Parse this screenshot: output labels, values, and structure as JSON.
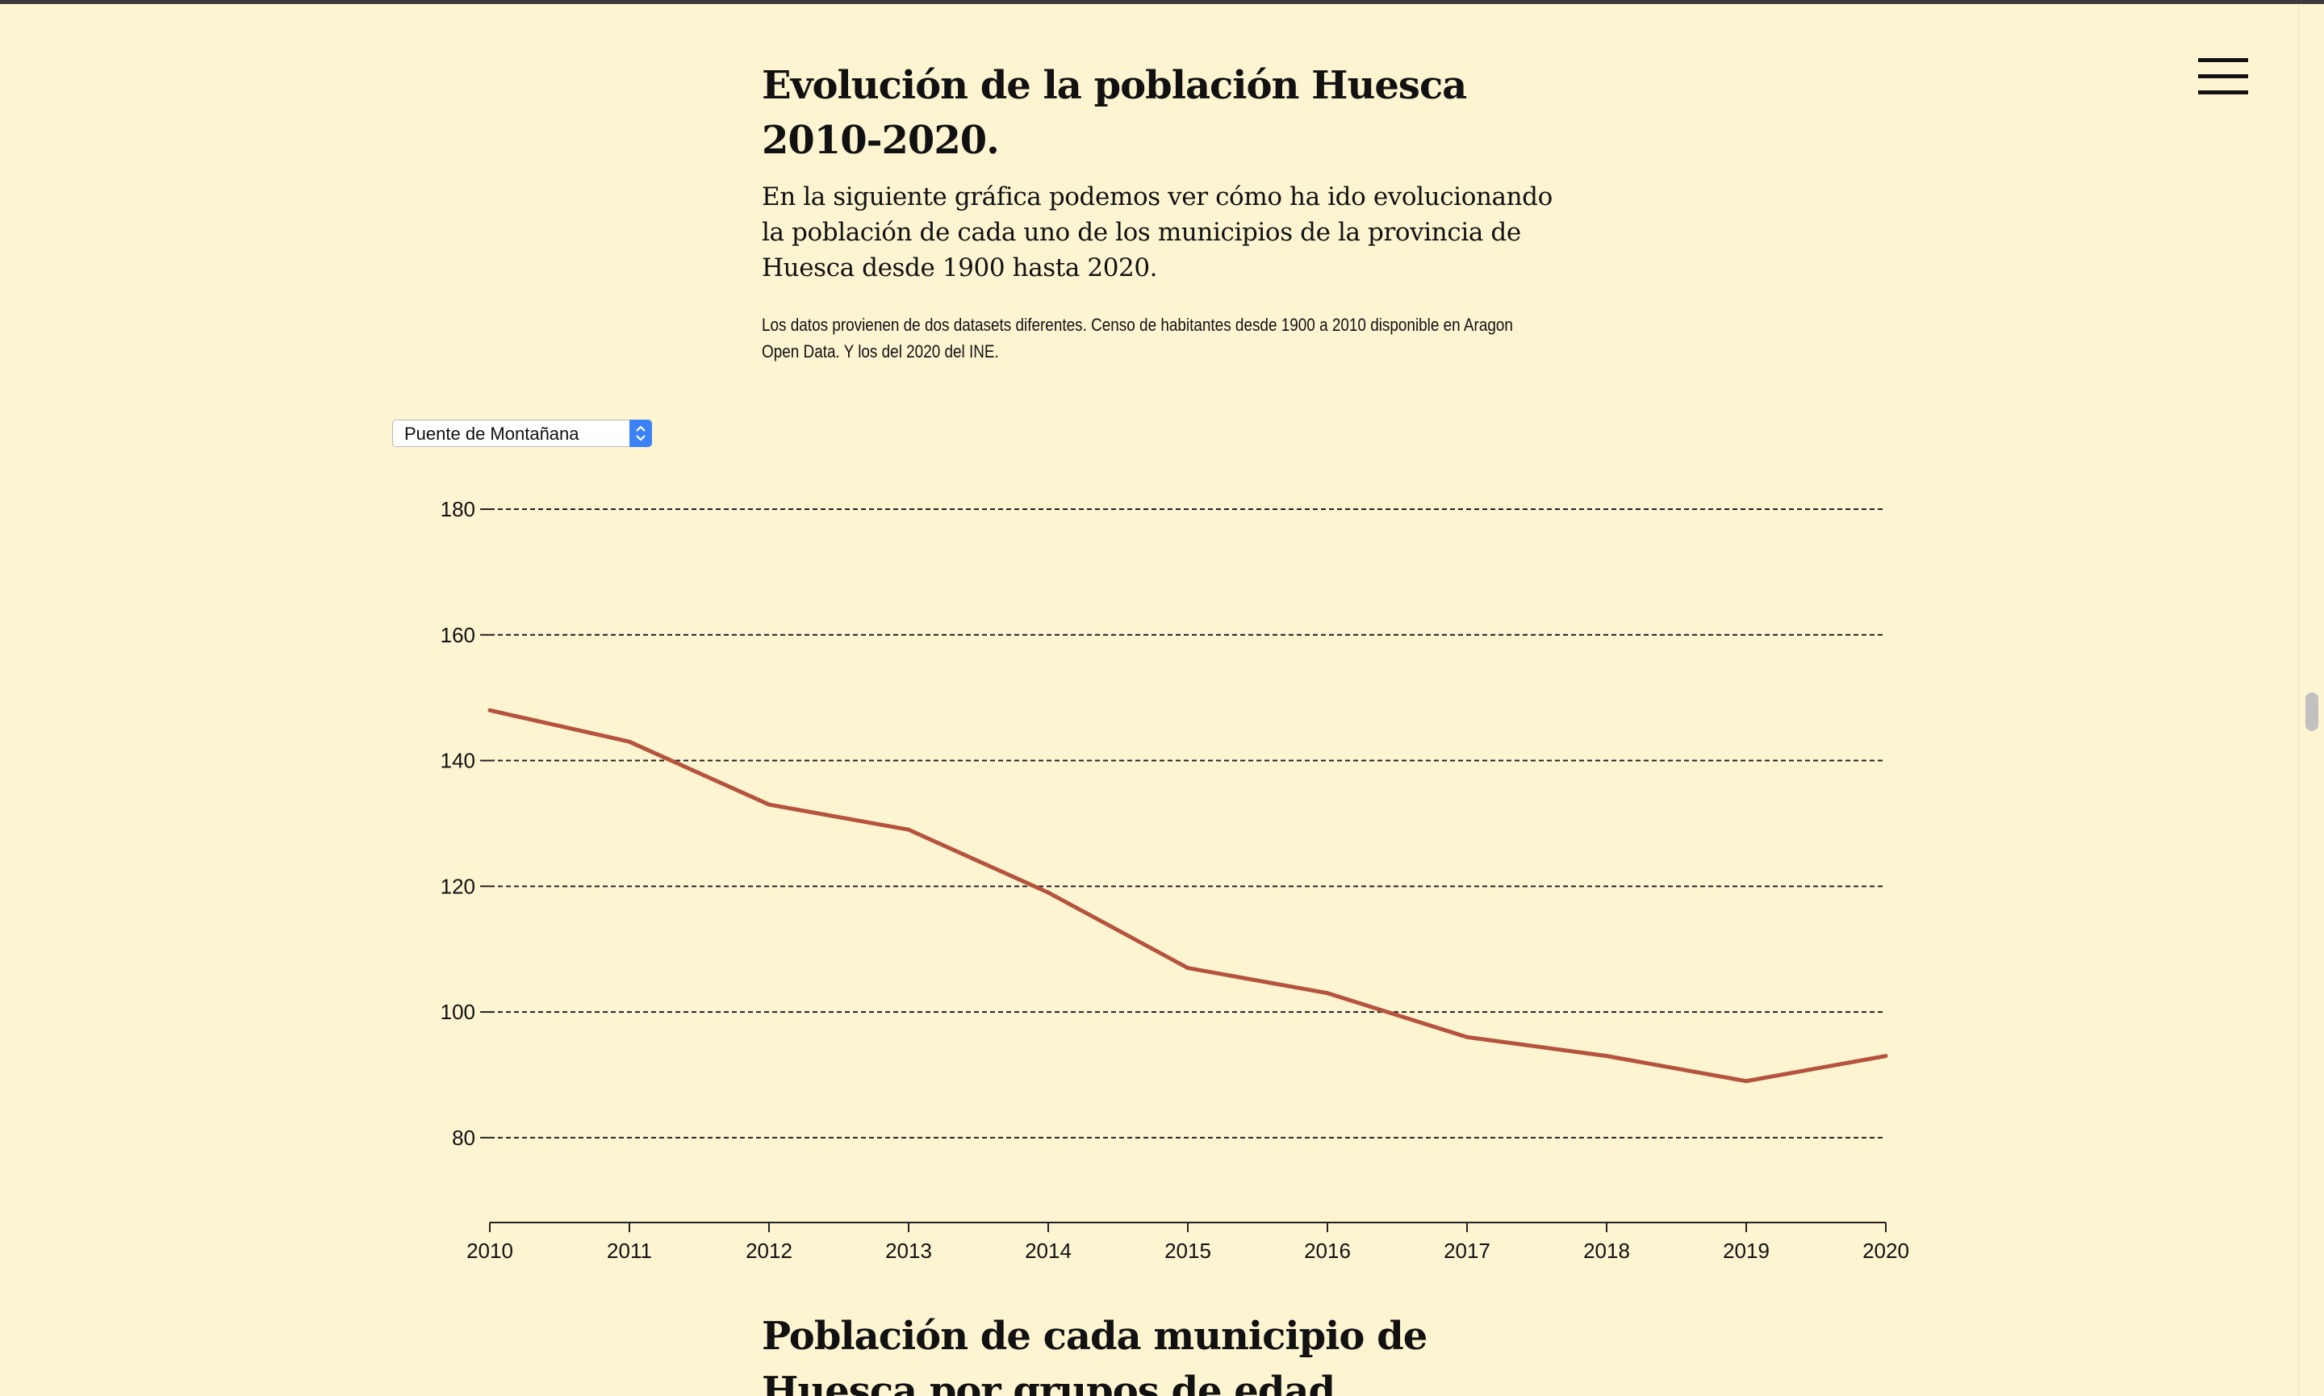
{
  "header": {
    "title": "Evolución de la población Huesca 2010-2020.",
    "intro": "En la siguiente gráfica podemos ver cómo ha ido evolucionando la población de cada uno de los municipios de la provincia de Huesca desde 1900 hasta 2020.",
    "note": "Los datos provienen de dos datasets diferentes. Censo de habitantes desde 1900 a 2010 disponible en Aragon Open Data. Y los del 2020 del INE."
  },
  "controls": {
    "municipality_select": "Puente de Montañana"
  },
  "icons": {
    "menu": "hamburger-menu-icon",
    "select_arrows": "chevron-up-down-icon"
  },
  "colors": {
    "background": "#fdf5d2",
    "line": "#b5533c",
    "select_accent": "#3b82f6"
  },
  "chart_data": {
    "type": "line",
    "title": "",
    "xlabel": "",
    "ylabel": "",
    "x": [
      "2010",
      "2011",
      "2012",
      "2013",
      "2014",
      "2015",
      "2016",
      "2017",
      "2018",
      "2019",
      "2020"
    ],
    "series": [
      {
        "values": [
          148,
          143,
          133,
          129,
          119,
          107,
          103,
          96,
          93,
          89,
          93
        ]
      }
    ],
    "yticks": [
      "80",
      "100",
      "120",
      "140",
      "160",
      "180"
    ],
    "ylim": [
      66.5,
      180
    ],
    "grid": "horizontal dashed"
  },
  "next_section": {
    "title": "Población de cada municipio de Huesca por grupos de edad"
  }
}
